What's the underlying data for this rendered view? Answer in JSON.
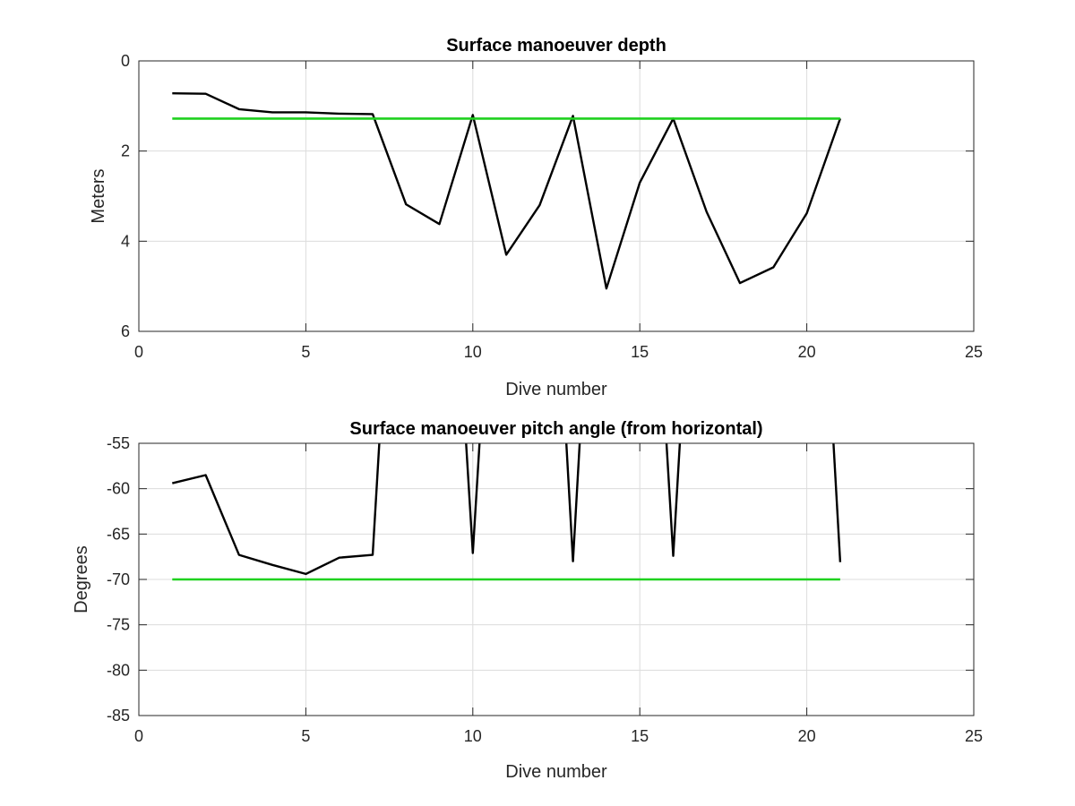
{
  "chart_data": [
    {
      "type": "line",
      "title": "Surface manoeuver depth",
      "xlabel": "Dive number",
      "ylabel": "Meters",
      "xlim": [
        0,
        25
      ],
      "ylim": [
        0,
        6
      ],
      "y_reversed": true,
      "grid": true,
      "xticks": [
        "0",
        "5",
        "10",
        "15",
        "20",
        "25"
      ],
      "yticks": [
        "0",
        "2",
        "4",
        "6"
      ],
      "series": [
        {
          "color": "#000000",
          "x": [
            1,
            2,
            3,
            4,
            5,
            6,
            7,
            8,
            9,
            10,
            11,
            12,
            13,
            14,
            15,
            16,
            17,
            18,
            19,
            20,
            21
          ],
          "y": [
            0.72,
            0.73,
            1.07,
            1.14,
            1.14,
            1.17,
            1.18,
            3.18,
            3.62,
            1.2,
            4.3,
            3.2,
            1.22,
            5.05,
            2.7,
            1.28,
            3.35,
            4.93,
            4.58,
            3.38,
            1.28
          ]
        },
        {
          "color": "#1fd11f",
          "x": [
            1,
            21
          ],
          "y": [
            1.28,
            1.28
          ]
        }
      ]
    },
    {
      "type": "line",
      "title": "Surface manoeuver pitch angle (from horizontal)",
      "xlabel": "Dive number",
      "ylabel": "Degrees",
      "xlim": [
        0,
        25
      ],
      "ylim": [
        -85,
        -55
      ],
      "grid": true,
      "xticks": [
        "0",
        "5",
        "10",
        "15",
        "20",
        "25"
      ],
      "yticks": [
        "-55",
        "-60",
        "-65",
        "-70",
        "-75",
        "-80",
        "-85"
      ],
      "series": [
        {
          "color": "#000000",
          "x": [
            1,
            2,
            3,
            4,
            5,
            6,
            7,
            7.2,
            9.8,
            10,
            10.2,
            12.8,
            13,
            13.2,
            15.8,
            16,
            16.2,
            20.8,
            21
          ],
          "y": [
            -59.4,
            -58.5,
            -67.3,
            -68.4,
            -69.4,
            -67.6,
            -67.3,
            -55,
            -55,
            -67.1,
            -55,
            -55,
            -68.0,
            -55,
            -55,
            -67.4,
            -55,
            -55,
            -68.1
          ],
          "gaps_after_index": [
            7,
            10,
            13,
            16
          ]
        },
        {
          "color": "#1fd11f",
          "x": [
            1,
            21
          ],
          "y": [
            -70,
            -70
          ]
        }
      ]
    }
  ]
}
